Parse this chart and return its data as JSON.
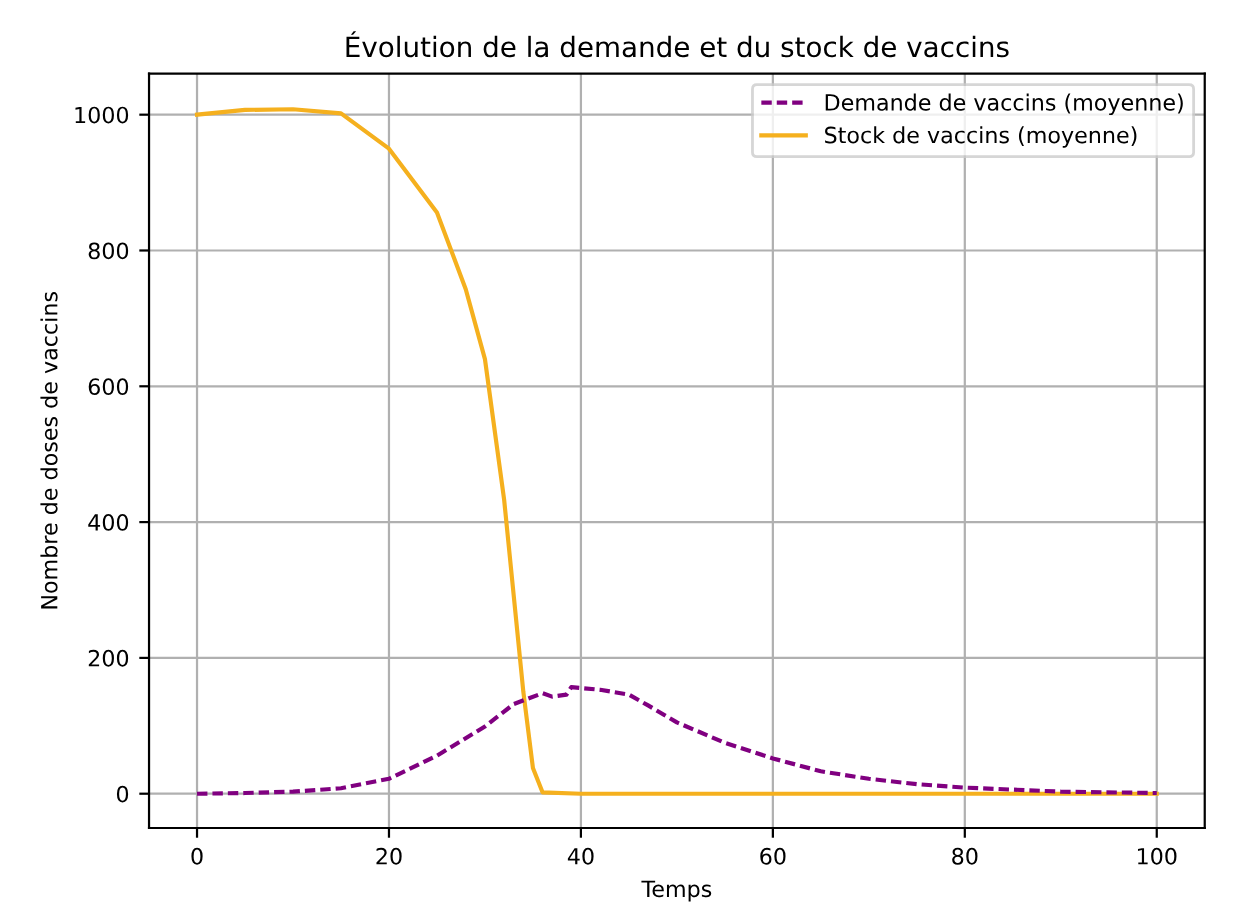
{
  "chart_data": {
    "type": "line",
    "title": "Évolution de la demande et du stock de vaccins",
    "xlabel": "Temps",
    "ylabel": "Nombre de doses de vaccins",
    "xlim": [
      -5,
      105
    ],
    "ylim": [
      -50.5,
      1060.5
    ],
    "xticks": [
      0,
      20,
      40,
      60,
      80,
      100
    ],
    "yticks": [
      0,
      200,
      400,
      600,
      800,
      1000
    ],
    "grid": true,
    "legend": "top right",
    "series": [
      {
        "name": "Demande de vaccins (moyenne)",
        "color": "#800080",
        "line_style": "dashed",
        "x": [
          0,
          5,
          10,
          15,
          20,
          25,
          30,
          33,
          36,
          37,
          38.5,
          39,
          42,
          45,
          47,
          50,
          55,
          60,
          65,
          70,
          75,
          80,
          85,
          90,
          100
        ],
        "values": [
          0,
          1,
          3,
          8,
          22,
          56,
          99,
          132,
          148,
          143,
          146,
          157,
          153,
          146,
          130,
          105,
          75,
          52,
          33,
          22,
          14,
          9,
          6,
          3,
          1
        ]
      },
      {
        "name": "Stock de vaccins (moyenne)",
        "color": "#f5b01e",
        "line_style": "solid",
        "x": [
          0,
          5,
          10,
          15,
          20,
          25,
          28,
          30,
          32,
          34,
          35,
          36,
          40,
          60,
          80,
          100
        ],
        "values": [
          1000,
          1007,
          1008,
          1002,
          950,
          856,
          743,
          640,
          433,
          150,
          38,
          2,
          0,
          0,
          0,
          0
        ]
      }
    ]
  }
}
